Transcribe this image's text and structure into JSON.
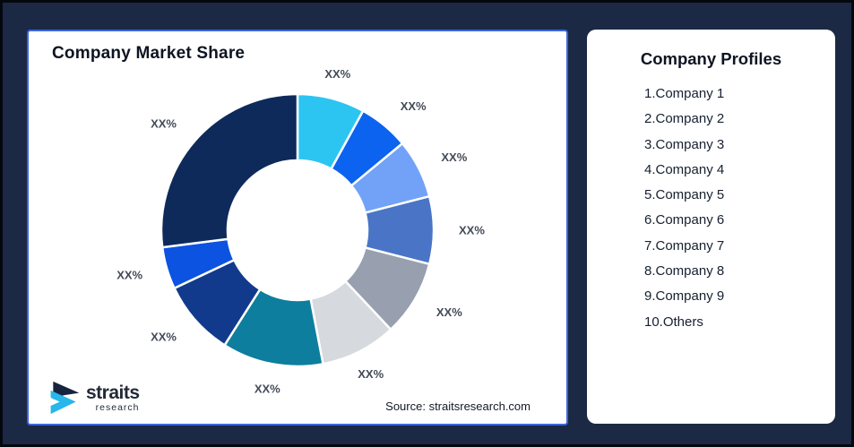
{
  "page": {
    "background": "#1c2945",
    "frame_border": "#05070e"
  },
  "chart_card": {
    "title": "Company Market Share",
    "source": "Source: straitsresearch.com",
    "logo": {
      "brand": "straits",
      "sub": "research"
    }
  },
  "chart_data": {
    "type": "donut",
    "title": "Company Market Share",
    "legend": "none",
    "start_angle_deg": 0,
    "clockwise": true,
    "segment_names": [
      "Company 1",
      "Company 2",
      "Company 3",
      "Company 4",
      "Company 5",
      "Company 6",
      "Company 7",
      "Company 8",
      "Company 9",
      "Others"
    ],
    "labels": [
      "XX%",
      "XX%",
      "XX%",
      "XX%",
      "XX%",
      "XX%",
      "XX%",
      "XX%",
      "XX%",
      "XX%"
    ],
    "values": [
      8,
      6,
      7,
      8,
      9,
      9,
      12,
      9,
      5,
      27
    ],
    "colors": [
      "#2cc5f2",
      "#0b63f0",
      "#71a2f8",
      "#4a75c6",
      "#98a0af",
      "#d6d9dd",
      "#0d7e9e",
      "#123a8c",
      "#0c53e2",
      "#0e2a5a"
    ],
    "label_color": "#434a57",
    "slice_gap_color": "#ffffff"
  },
  "profiles_card": {
    "title": "Company Profiles",
    "items": [
      "1.Company 1",
      "2.Company 2",
      "3.Company 3",
      "4.Company 4",
      "5.Company 5",
      "6.Company 6",
      "7.Company 7",
      "8.Company 8",
      "9.Company 9",
      "10.Others"
    ]
  }
}
